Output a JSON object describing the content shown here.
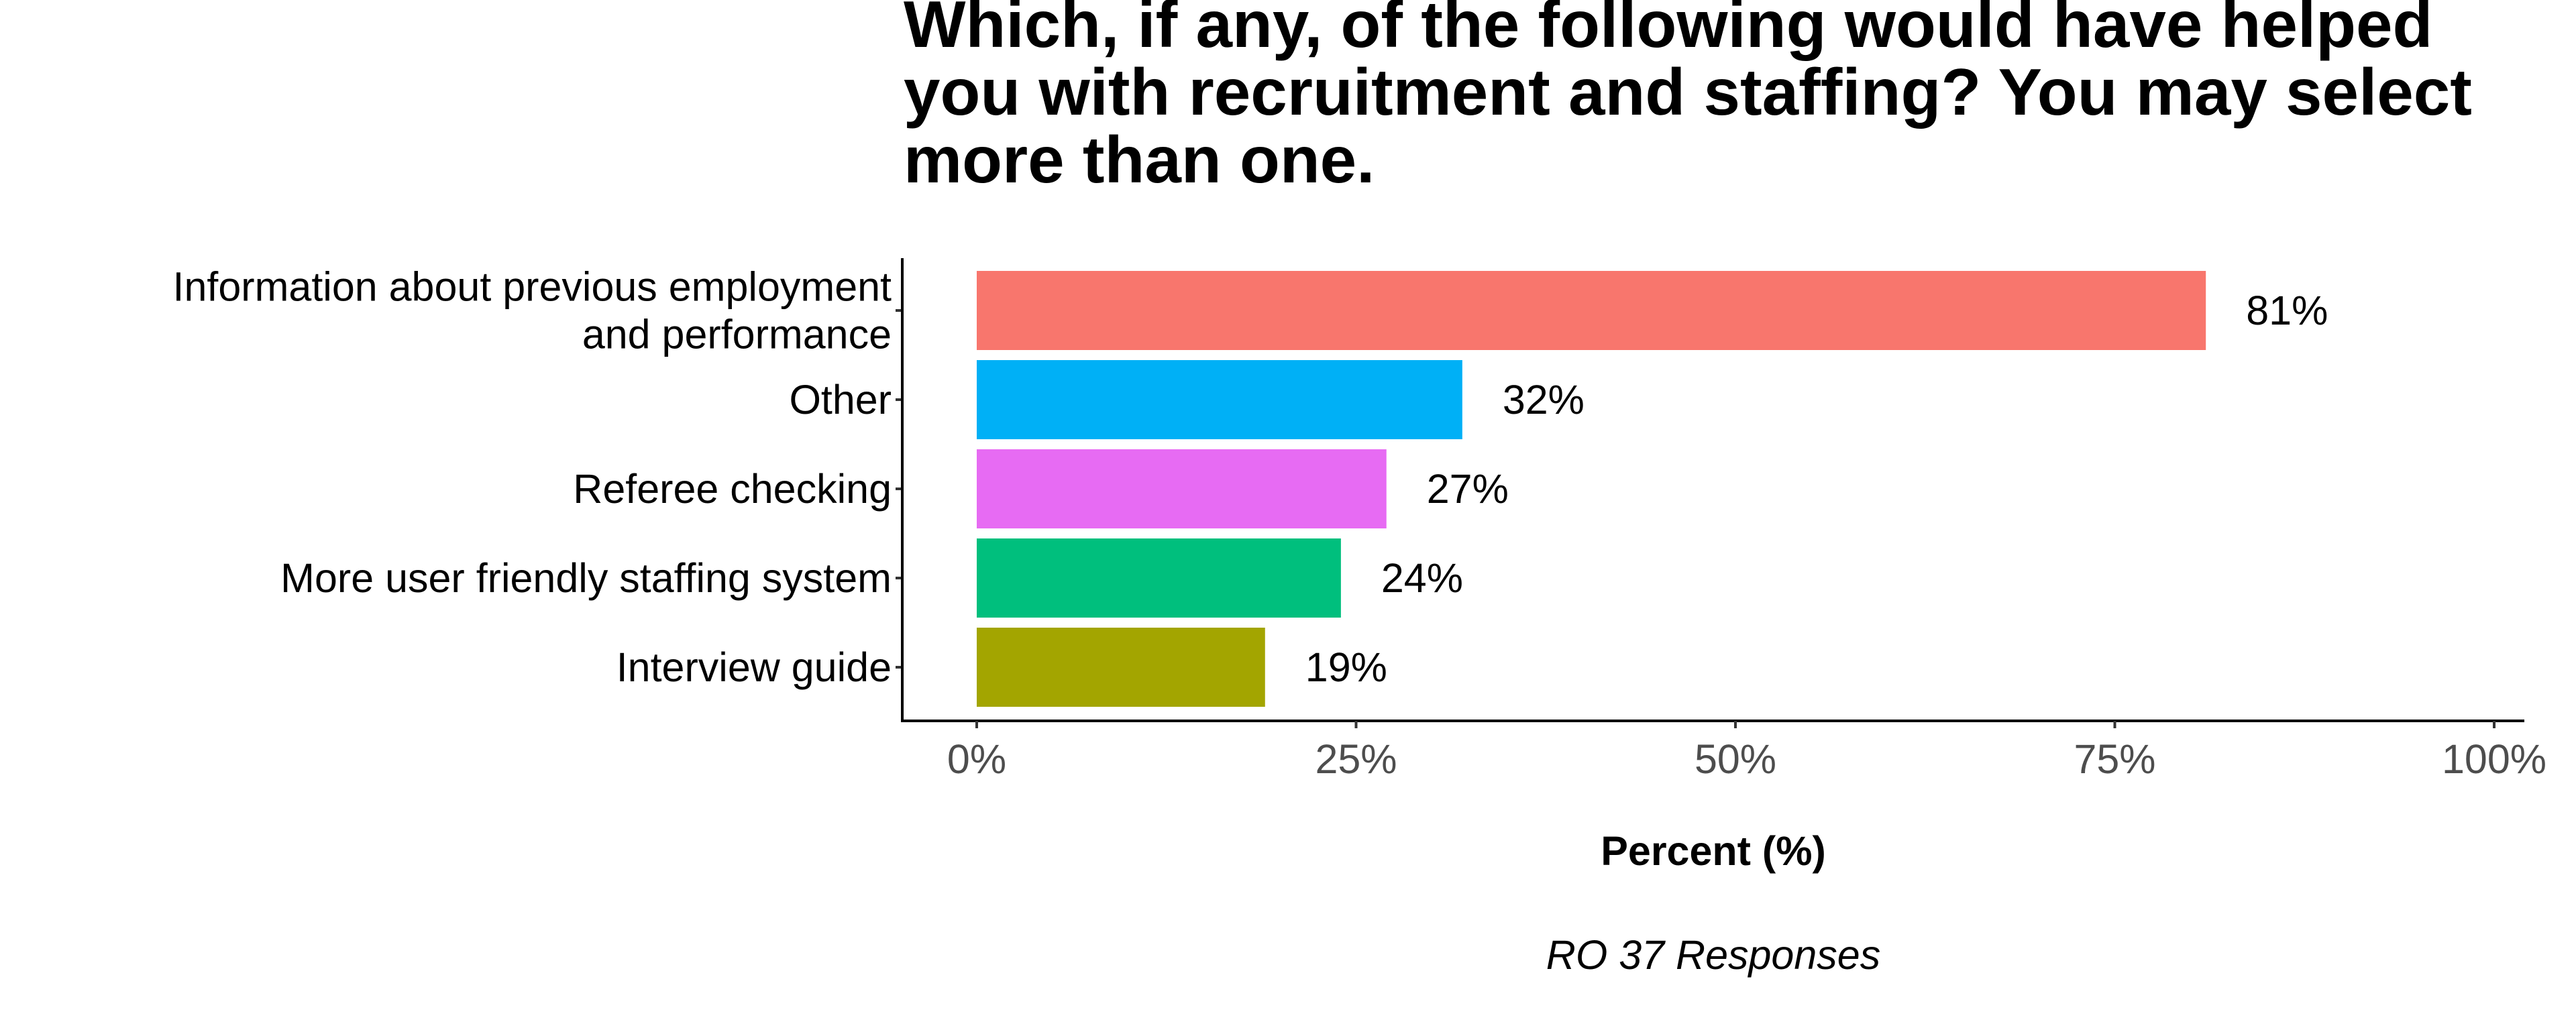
{
  "chart_data": {
    "type": "bar",
    "orientation": "horizontal",
    "title": "Which, if any, of the following would have helped you with recruitment and staffing? You may select more than one.",
    "title_lines": [
      "Which, if any, of the following would have helped",
      "you with recruitment and staffing? You may select",
      "more than one."
    ],
    "categories": [
      "Information about previous employment and performance",
      "Other",
      "Referee checking",
      "More user friendly staffing system",
      "Interview guide"
    ],
    "category_lines": [
      [
        "Information about previous employment",
        "and performance"
      ],
      [
        "Other"
      ],
      [
        "Referee checking"
      ],
      [
        "More user friendly staffing system"
      ],
      [
        "Interview guide"
      ]
    ],
    "values": [
      81,
      32,
      27,
      24,
      19
    ],
    "value_labels": [
      "81%",
      "32%",
      "27%",
      "24%",
      "19%"
    ],
    "colors": [
      "#F8766D",
      "#00B0F6",
      "#E76BF3",
      "#00BF7D",
      "#A3A500"
    ],
    "xlabel": "Percent (%)",
    "ylabel": "",
    "caption": "RO 37 Responses",
    "xlim": [
      0,
      100
    ],
    "xticks": [
      0,
      25,
      50,
      75,
      100
    ],
    "xtick_labels": [
      "0%",
      "25%",
      "50%",
      "75%",
      "100%"
    ],
    "grid": false,
    "legend": "none"
  }
}
